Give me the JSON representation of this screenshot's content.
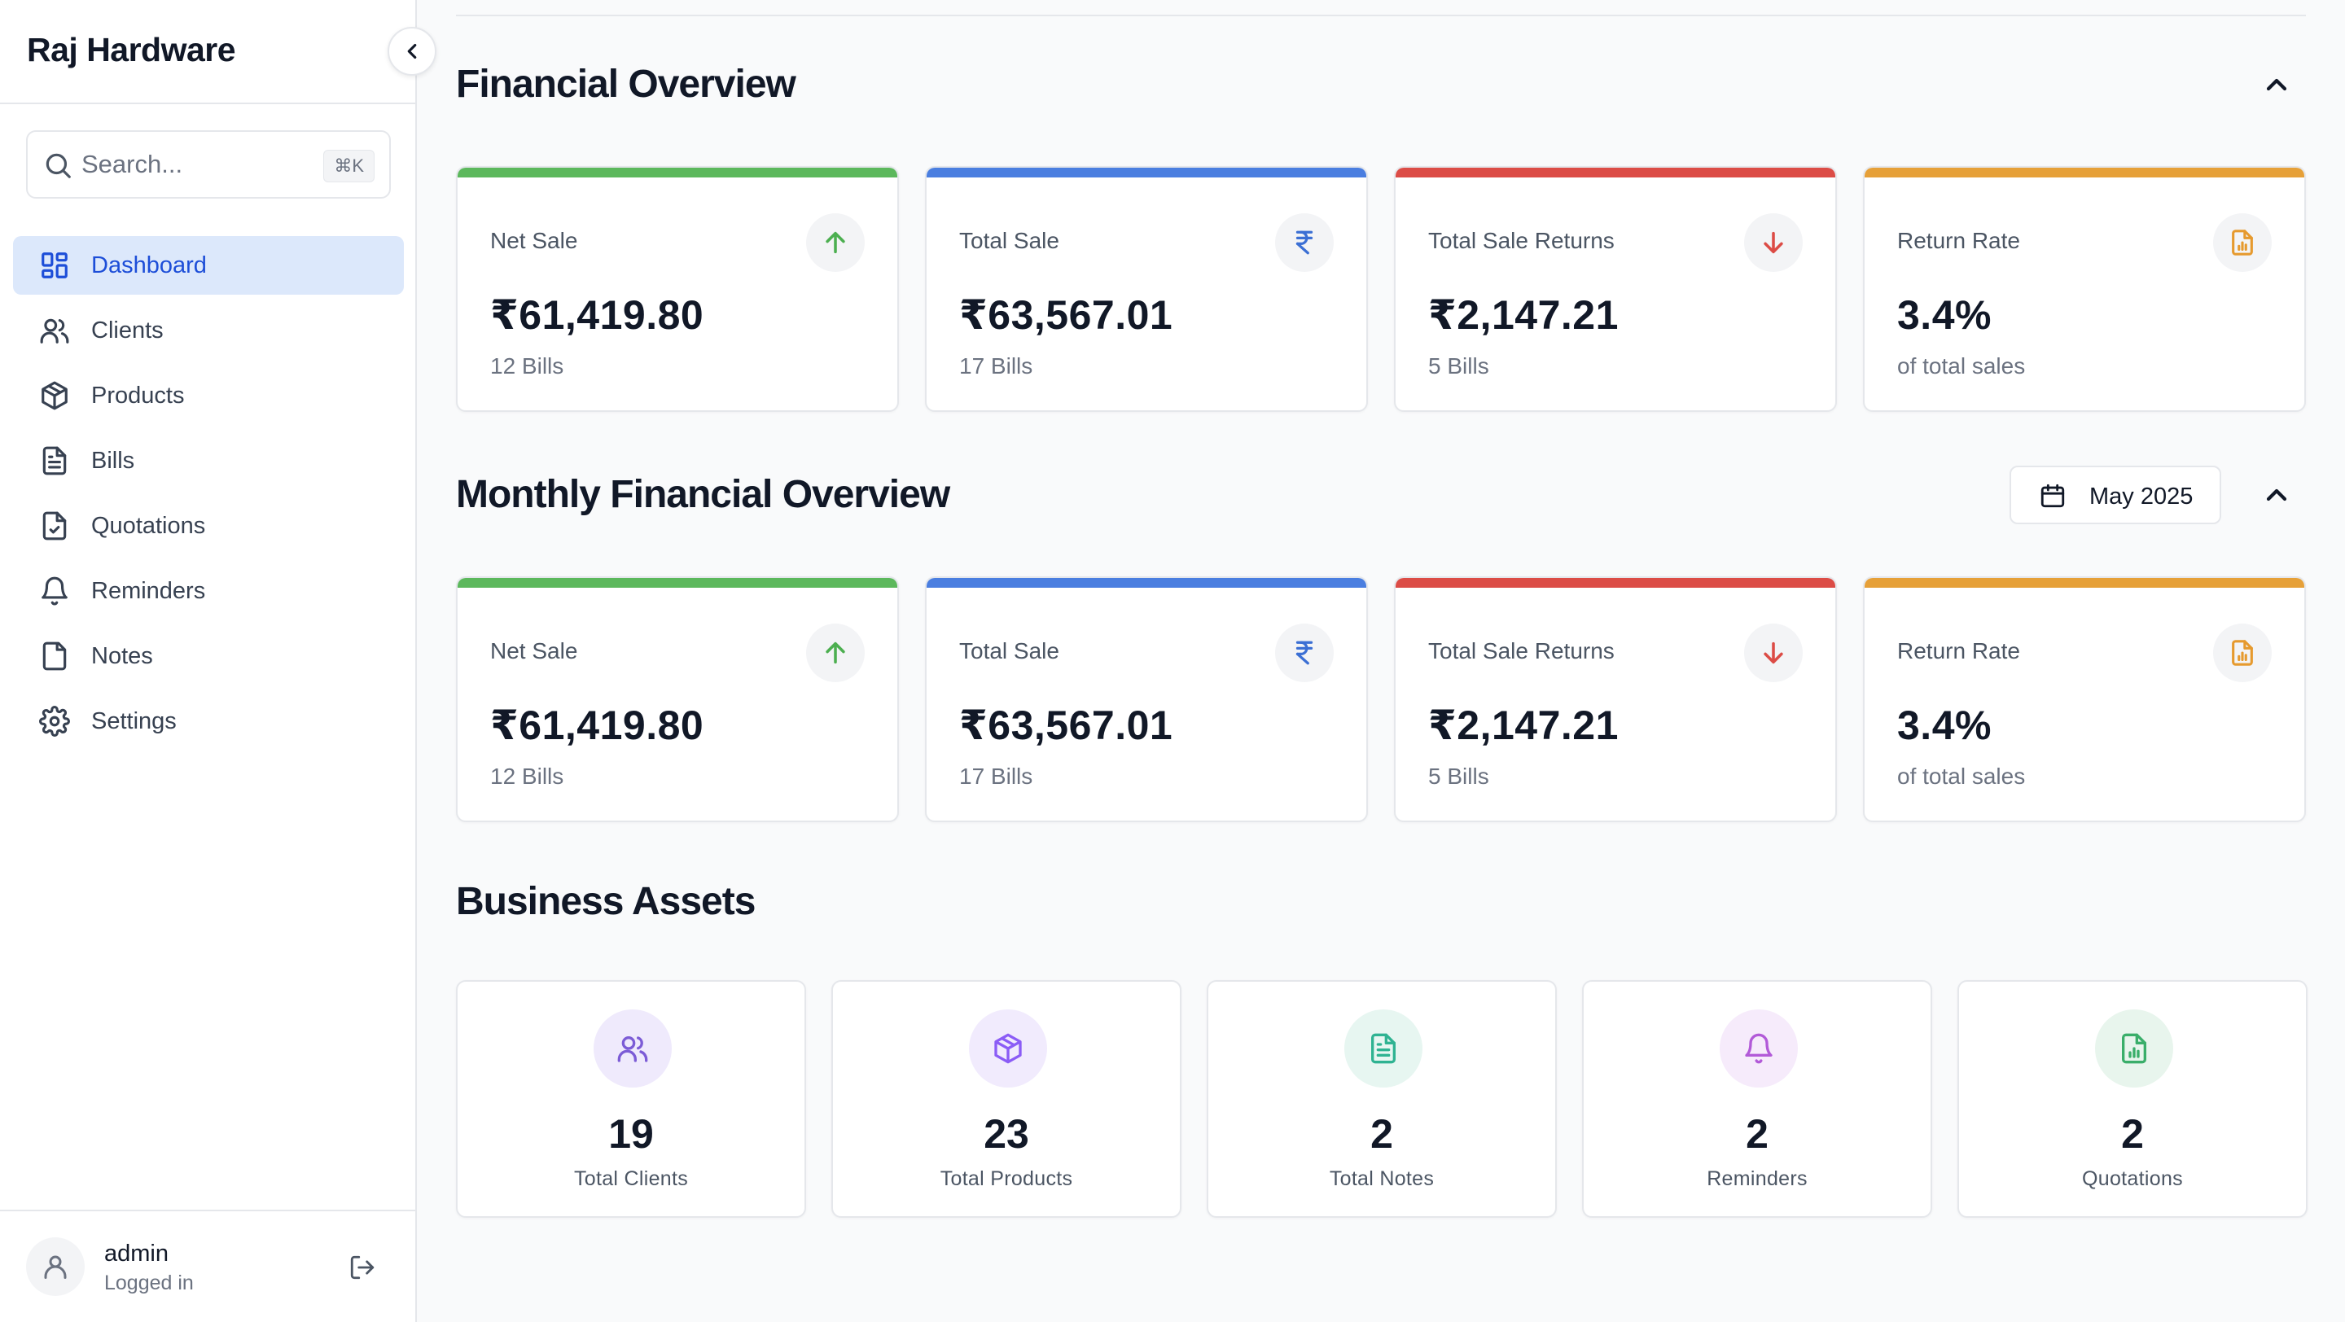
{
  "sidebar": {
    "brand": "Raj Hardware",
    "search": {
      "placeholder": "Search...",
      "shortcut": "⌘K"
    },
    "items": [
      {
        "label": "Dashboard",
        "icon": "dashboard-icon",
        "active": true
      },
      {
        "label": "Clients",
        "icon": "users-icon"
      },
      {
        "label": "Products",
        "icon": "package-icon"
      },
      {
        "label": "Bills",
        "icon": "file-text-icon"
      },
      {
        "label": "Quotations",
        "icon": "file-check-icon"
      },
      {
        "label": "Reminders",
        "icon": "bell-icon"
      },
      {
        "label": "Notes",
        "icon": "note-icon"
      },
      {
        "label": "Settings",
        "icon": "gear-icon"
      }
    ],
    "user": {
      "name": "admin",
      "status": "Logged in"
    }
  },
  "financial": {
    "title": "Financial Overview",
    "cards": [
      {
        "label": "Net Sale",
        "value": "₹61,419.80",
        "sub": "12 Bills",
        "color": "#5cb85c",
        "icon": "arrow-up-icon"
      },
      {
        "label": "Total Sale",
        "value": "₹63,567.01",
        "sub": "17 Bills",
        "color": "#4a7ee0",
        "icon": "rupee-icon"
      },
      {
        "label": "Total Sale Returns",
        "value": "₹2,147.21",
        "sub": "5 Bills",
        "color": "#dc4c46",
        "icon": "arrow-down-icon"
      },
      {
        "label": "Return Rate",
        "value": "3.4%",
        "sub": "of total sales",
        "color": "#e6a038",
        "icon": "report-icon"
      }
    ]
  },
  "monthly": {
    "title": "Monthly Financial Overview",
    "month": "May 2025",
    "cards": [
      {
        "label": "Net Sale",
        "value": "₹61,419.80",
        "sub": "12 Bills",
        "color": "#5cb85c",
        "icon": "arrow-up-icon"
      },
      {
        "label": "Total Sale",
        "value": "₹63,567.01",
        "sub": "17 Bills",
        "color": "#4a7ee0",
        "icon": "rupee-icon"
      },
      {
        "label": "Total Sale Returns",
        "value": "₹2,147.21",
        "sub": "5 Bills",
        "color": "#dc4c46",
        "icon": "arrow-down-icon"
      },
      {
        "label": "Return Rate",
        "value": "3.4%",
        "sub": "of total sales",
        "color": "#e6a038",
        "icon": "report-icon"
      }
    ]
  },
  "assets": {
    "title": "Business Assets",
    "cards": [
      {
        "count": "19",
        "label": "Total Clients",
        "icon": "users-icon",
        "color": "#7c5cd6",
        "bg": "#efeafc"
      },
      {
        "count": "23",
        "label": "Total Products",
        "icon": "package-icon",
        "color": "#8b5cf6",
        "bg": "#f1ebfd"
      },
      {
        "count": "2",
        "label": "Total Notes",
        "icon": "file-text-icon",
        "color": "#2fb392",
        "bg": "#e7f6f1"
      },
      {
        "count": "2",
        "label": "Reminders",
        "icon": "bell-icon",
        "color": "#b25ad8",
        "bg": "#f6ebfb"
      },
      {
        "count": "2",
        "label": "Quotations",
        "icon": "report-icon",
        "color": "#3aae6a",
        "bg": "#e8f5ed"
      }
    ]
  }
}
